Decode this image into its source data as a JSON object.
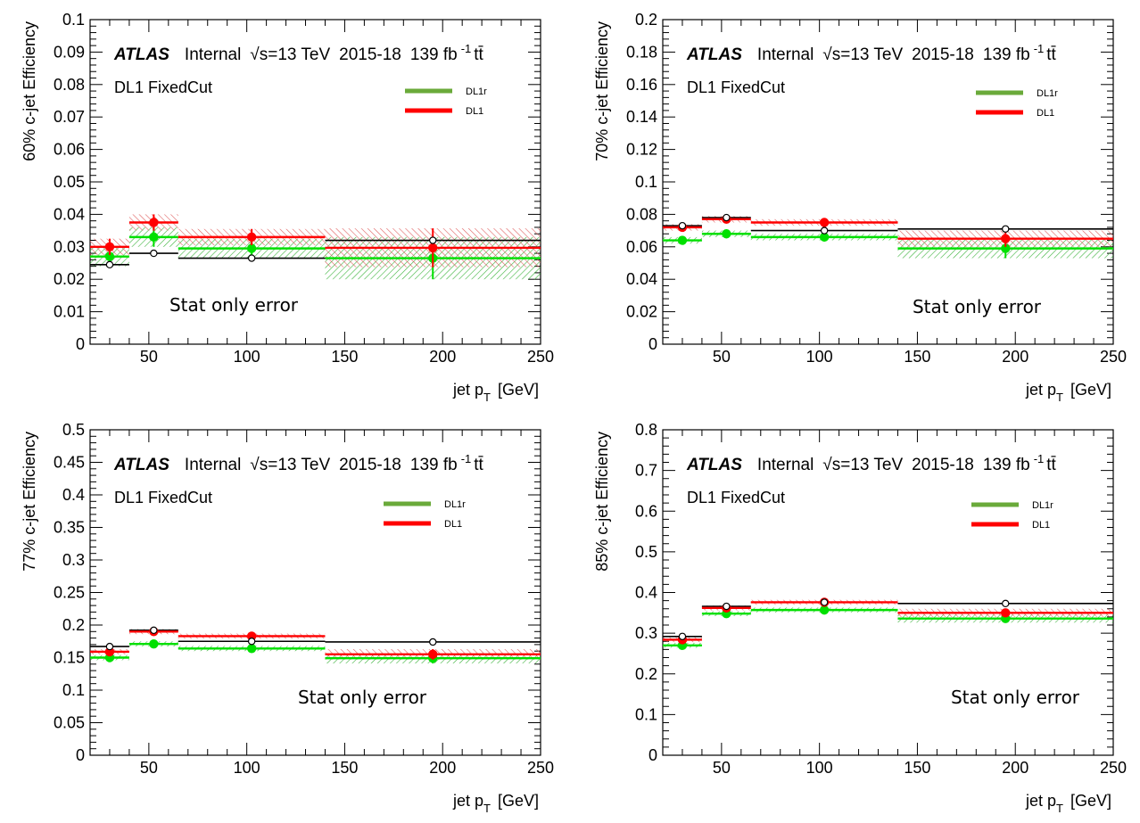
{
  "figure": {
    "colors": {
      "dl1r": "#6aaa3a",
      "dl1": "#ff0000",
      "dl1r_marker": "#00e000",
      "reference": "#000000",
      "dl1r_band": "#3cb43c",
      "dl1_band": "#e06060"
    }
  },
  "chart_data": [
    {
      "type": "line",
      "ylabel": "60% c-jet Efficiency",
      "xlabel": "jet p",
      "xlabel_sub": "T",
      "xlabel_unit": "[GeV]",
      "atlas": "ATLAS",
      "internal": "Internal",
      "energy": "√s=13 TeV",
      "years": "2015-18",
      "lumi": "139 fb",
      "lumi_sup": "-1",
      "process": "tt̄",
      "tagger": "DL1 FixedCut",
      "note": "Stat only error",
      "legend": [
        "DL1r",
        "DL1"
      ],
      "xlim": [
        20,
        250
      ],
      "ylim": [
        0,
        0.1
      ],
      "xticks": [
        50,
        100,
        150,
        200,
        250
      ],
      "yticks": [
        0,
        0.01,
        0.02,
        0.03,
        0.04,
        0.05,
        0.06,
        0.07,
        0.08,
        0.09,
        0.1
      ],
      "bins": [
        [
          20,
          40
        ],
        [
          40,
          65
        ],
        [
          65,
          140
        ],
        [
          140,
          250
        ]
      ],
      "centers": [
        30,
        52.5,
        102.5,
        195
      ],
      "series": [
        {
          "name": "DL1r",
          "values": [
            0.027,
            0.033,
            0.0295,
            0.0265
          ],
          "errors": [
            0.003,
            0.003,
            0.003,
            0.0065
          ]
        },
        {
          "name": "DL1",
          "values": [
            0.03,
            0.0375,
            0.033,
            0.0297
          ],
          "errors": [
            0.0025,
            0.0025,
            0.0025,
            0.006
          ]
        }
      ],
      "reference": [
        0.0245,
        0.028,
        0.0265,
        0.032
      ]
    },
    {
      "type": "line",
      "ylabel": "70% c-jet Efficiency",
      "xlabel": "jet p",
      "xlabel_sub": "T",
      "xlabel_unit": "[GeV]",
      "atlas": "ATLAS",
      "internal": "Internal",
      "energy": "√s=13 TeV",
      "years": "2015-18",
      "lumi": "139 fb",
      "lumi_sup": "-1",
      "process": "tt̄",
      "tagger": "DL1 FixedCut",
      "note": "Stat only error",
      "legend": [
        "DL1r",
        "DL1"
      ],
      "xlim": [
        20,
        250
      ],
      "ylim": [
        0,
        0.2
      ],
      "xticks": [
        50,
        100,
        150,
        200,
        250
      ],
      "yticks": [
        0,
        0.02,
        0.04,
        0.06,
        0.08,
        0.1,
        0.12,
        0.14,
        0.16,
        0.18,
        0.2
      ],
      "bins": [
        [
          20,
          40
        ],
        [
          40,
          65
        ],
        [
          65,
          140
        ],
        [
          140,
          250
        ]
      ],
      "centers": [
        30,
        52.5,
        102.5,
        195
      ],
      "series": [
        {
          "name": "DL1r",
          "values": [
            0.064,
            0.068,
            0.066,
            0.059
          ],
          "errors": [
            0.002,
            0.002,
            0.002,
            0.006
          ]
        },
        {
          "name": "DL1",
          "values": [
            0.072,
            0.077,
            0.075,
            0.065
          ],
          "errors": [
            0.002,
            0.002,
            0.002,
            0.005
          ]
        }
      ],
      "reference": [
        0.073,
        0.078,
        0.07,
        0.071
      ]
    },
    {
      "type": "line",
      "ylabel": "77% c-jet Efficiency",
      "xlabel": "jet p",
      "xlabel_sub": "T",
      "xlabel_unit": "[GeV]",
      "atlas": "ATLAS",
      "internal": "Internal",
      "energy": "√s=13 TeV",
      "years": "2015-18",
      "lumi": "139 fb",
      "lumi_sup": "-1",
      "process": "tt̄",
      "tagger": "DL1 FixedCut",
      "note": "Stat only error",
      "legend": [
        "DL1r",
        "DL1"
      ],
      "xlim": [
        20,
        250
      ],
      "ylim": [
        0,
        0.5
      ],
      "xticks": [
        50,
        100,
        150,
        200,
        250
      ],
      "yticks": [
        0,
        0.05,
        0.1,
        0.15,
        0.2,
        0.25,
        0.3,
        0.35,
        0.4,
        0.45,
        0.5
      ],
      "bins": [
        [
          20,
          40
        ],
        [
          40,
          65
        ],
        [
          65,
          140
        ],
        [
          140,
          250
        ]
      ],
      "centers": [
        30,
        52.5,
        102.5,
        195
      ],
      "series": [
        {
          "name": "DL1r",
          "values": [
            0.15,
            0.171,
            0.164,
            0.149
          ],
          "errors": [
            0.004,
            0.004,
            0.004,
            0.008
          ]
        },
        {
          "name": "DL1",
          "values": [
            0.159,
            0.19,
            0.183,
            0.155
          ],
          "errors": [
            0.004,
            0.004,
            0.004,
            0.008
          ]
        }
      ],
      "reference": [
        0.167,
        0.192,
        0.175,
        0.174
      ]
    },
    {
      "type": "line",
      "ylabel": "85% c-jet Efficiency",
      "xlabel": "jet p",
      "xlabel_sub": "T",
      "xlabel_unit": "[GeV]",
      "atlas": "ATLAS",
      "internal": "Internal",
      "energy": "√s=13 TeV",
      "years": "2015-18",
      "lumi": "139 fb",
      "lumi_sup": "-1",
      "process": "tt̄",
      "tagger": "DL1 FixedCut",
      "note": "Stat only error",
      "legend": [
        "DL1r",
        "DL1"
      ],
      "xlim": [
        20,
        250
      ],
      "ylim": [
        0,
        0.8
      ],
      "xticks": [
        50,
        100,
        150,
        200,
        250
      ],
      "yticks": [
        0,
        0.1,
        0.2,
        0.3,
        0.4,
        0.5,
        0.6,
        0.7,
        0.8
      ],
      "bins": [
        [
          20,
          40
        ],
        [
          40,
          65
        ],
        [
          65,
          140
        ],
        [
          140,
          250
        ]
      ],
      "centers": [
        30,
        52.5,
        102.5,
        195
      ],
      "series": [
        {
          "name": "DL1r",
          "values": [
            0.27,
            0.348,
            0.357,
            0.336
          ],
          "errors": [
            0.006,
            0.006,
            0.006,
            0.01
          ]
        },
        {
          "name": "DL1",
          "values": [
            0.284,
            0.362,
            0.376,
            0.35
          ],
          "errors": [
            0.006,
            0.006,
            0.006,
            0.01
          ]
        }
      ],
      "reference": [
        0.292,
        0.366,
        0.376,
        0.373
      ]
    }
  ]
}
